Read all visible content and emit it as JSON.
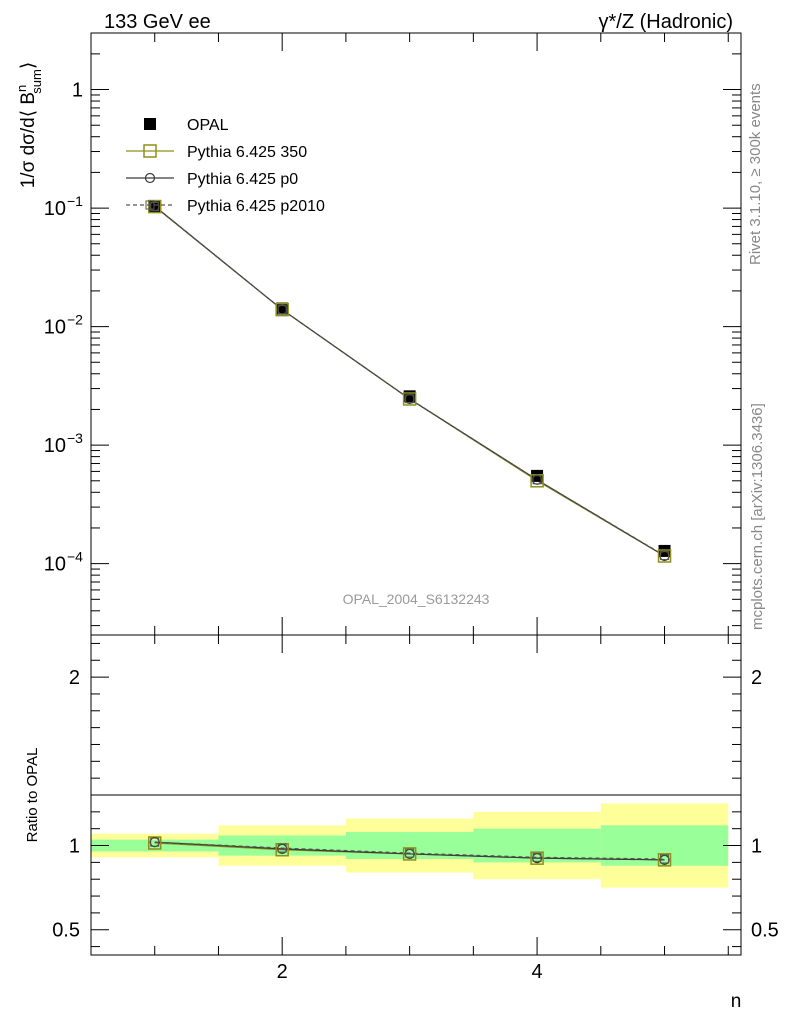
{
  "header": {
    "energy": "133 GeV ee",
    "process": "γ*/Z (Hadronic)"
  },
  "side_labels": {
    "rivet": "Rivet 3.1.10, ≥ 300k events",
    "source": "mcplots.cern.ch [arXiv:1306.3436]"
  },
  "analysis_id": "OPAL_2004_S6132243",
  "colors": {
    "data": "#000000",
    "mc_350": "#8f8f1a",
    "mc_p0": "#3a3a3a",
    "mc_p2010": "#555555",
    "band_inner": "#99ff99",
    "band_outer": "#ffff99"
  },
  "chart_data": [
    {
      "type": "scatter",
      "panel": "main",
      "ylabel": "1/σ dσ/d⟨ B^n_sum ⟩",
      "yscale": "log",
      "ylim": [
        2.5e-05,
        3.0
      ],
      "xlim": [
        0.5,
        5.6
      ],
      "ytick_labels": [
        "10^-4",
        "10^-3",
        "10^-2",
        "10^-1",
        "1"
      ],
      "legend": [
        "OPAL",
        "Pythia 6.425 350",
        "Pythia 6.425 p0",
        "Pythia 6.425 p2010"
      ],
      "legend_position": "top-left",
      "x": [
        1,
        2,
        3,
        4,
        5
      ],
      "series": [
        {
          "name": "OPAL",
          "values": [
            0.102,
            0.0142,
            0.00258,
            0.00055,
            0.000128
          ]
        },
        {
          "name": "Pythia 6.425 350",
          "values": [
            0.103,
            0.0139,
            0.00245,
            0.0005,
            0.000116
          ]
        },
        {
          "name": "Pythia 6.425 p0",
          "values": [
            0.104,
            0.0139,
            0.00245,
            0.00051,
            0.000116
          ]
        },
        {
          "name": "Pythia 6.425 p2010",
          "values": [
            0.103,
            0.0139,
            0.00246,
            0.00051,
            0.000117
          ]
        }
      ]
    },
    {
      "type": "line",
      "panel": "ratio",
      "ylabel": "Ratio to OPAL",
      "xlabel": "n",
      "ylim": [
        0.35,
        2.25
      ],
      "xlim": [
        0.5,
        5.6
      ],
      "xtick_labels": [
        "2",
        "4"
      ],
      "ytick_labels": [
        "0.5",
        "1",
        "2"
      ],
      "bands": {
        "x_edges": [
          0.5,
          1.5,
          2.5,
          3.5,
          4.5,
          5.5
        ],
        "inner": [
          [
            0.965,
            1.035
          ],
          [
            0.94,
            1.06
          ],
          [
            0.92,
            1.08
          ],
          [
            0.9,
            1.1
          ],
          [
            0.88,
            1.12
          ]
        ],
        "outer": [
          [
            0.93,
            1.07
          ],
          [
            0.88,
            1.12
          ],
          [
            0.84,
            1.16
          ],
          [
            0.8,
            1.2
          ],
          [
            0.75,
            1.25
          ]
        ]
      },
      "x": [
        1,
        2,
        3,
        4,
        5
      ],
      "series": [
        {
          "name": "Pythia 6.425 350",
          "values": [
            1.015,
            0.975,
            0.95,
            0.925,
            0.915
          ]
        },
        {
          "name": "Pythia 6.425 p0",
          "values": [
            1.02,
            0.98,
            0.95,
            0.925,
            0.915
          ]
        },
        {
          "name": "Pythia 6.425 p2010",
          "values": [
            1.02,
            0.985,
            0.955,
            0.93,
            0.92
          ]
        }
      ]
    }
  ]
}
